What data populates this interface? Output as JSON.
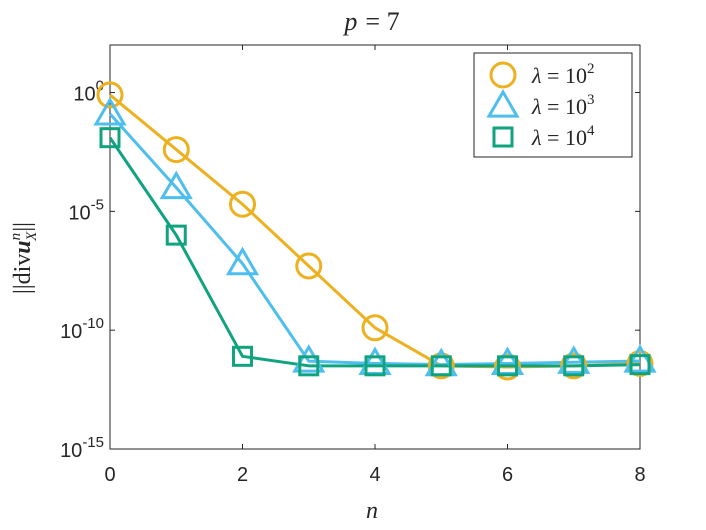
{
  "chart_data": {
    "type": "line",
    "title_lhs": "p",
    "title_eq": "= 7",
    "xlabel": "n",
    "ylabel": "||div u_X^n||",
    "x": [
      0,
      1,
      2,
      3,
      4,
      5,
      6,
      7,
      8
    ],
    "xlim": [
      0,
      8
    ],
    "xticks": [
      0,
      2,
      4,
      6,
      8
    ],
    "xtick_labels": [
      "0",
      "2",
      "4",
      "6",
      "8"
    ],
    "yscale": "log",
    "ylim_exp": [
      -15,
      2
    ],
    "yticks_exp": [
      0,
      -5,
      -10,
      -15
    ],
    "ytick_base": "10",
    "ytick_exps": [
      "0",
      "-5",
      "-10",
      "-15"
    ],
    "legend_position": "top-right",
    "grid": false,
    "series": [
      {
        "name": "λ = 10^2",
        "legend_lhs": "λ = 10",
        "legend_exp": "2",
        "color": "#EDB120",
        "marker": "circle",
        "log10_values": [
          -0.1,
          -2.4,
          -4.7,
          -7.3,
          -9.9,
          -11.5,
          -11.55,
          -11.5,
          -11.4
        ]
      },
      {
        "name": "λ = 10^3",
        "legend_lhs": "λ = 10",
        "legend_exp": "3",
        "color": "#4DBEEE",
        "marker": "triangle",
        "log10_values": [
          -0.9,
          -4.0,
          -7.2,
          -11.3,
          -11.4,
          -11.45,
          -11.4,
          -11.35,
          -11.3
        ]
      },
      {
        "name": "λ = 10^4",
        "legend_lhs": "λ = 10",
        "legend_exp": "4",
        "color": "#10A37F",
        "marker": "square",
        "log10_values": [
          -1.9,
          -6.0,
          -11.1,
          -11.5,
          -11.5,
          -11.5,
          -11.5,
          -11.5,
          -11.45
        ]
      }
    ]
  },
  "colors": {
    "axis": "#262626",
    "background": "#ffffff"
  }
}
